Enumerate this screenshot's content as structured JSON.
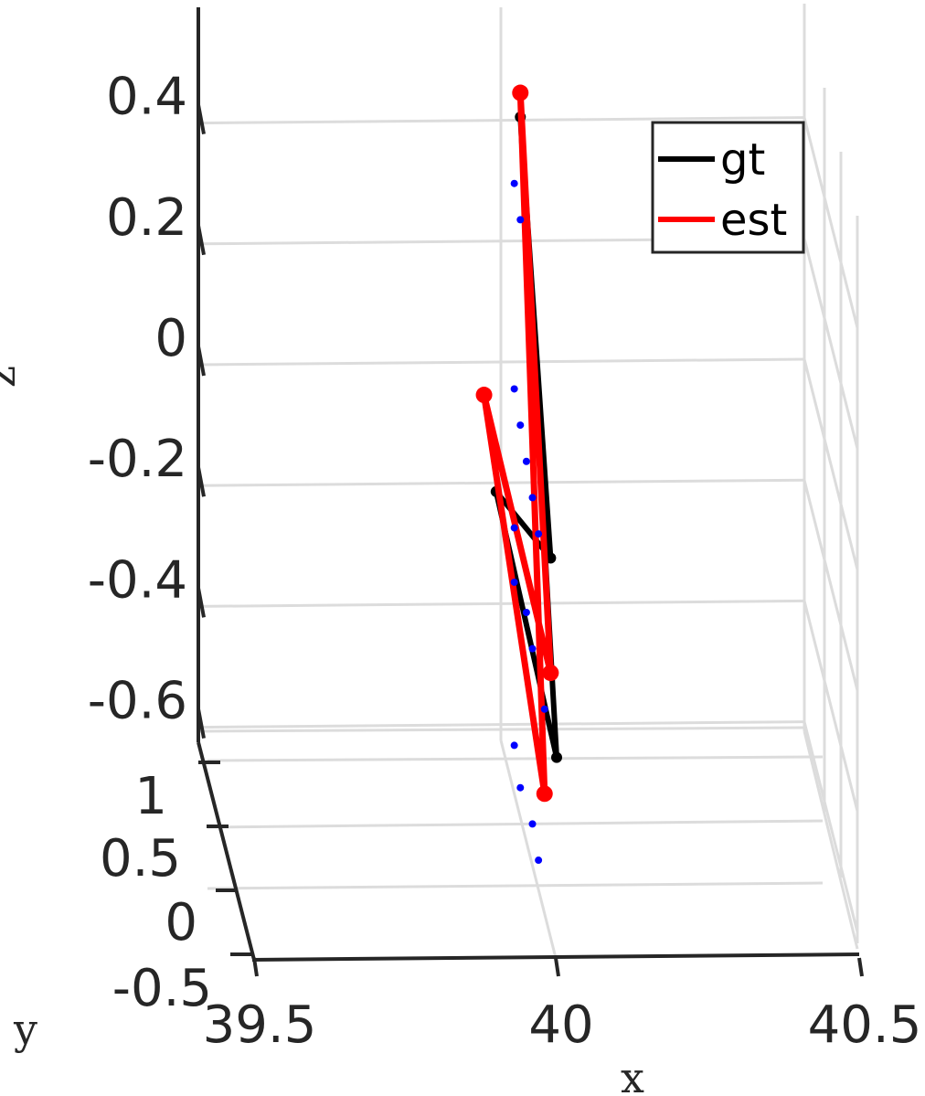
{
  "chart_data": {
    "type": "line",
    "projection": "3d",
    "xlabel": "x",
    "ylabel": "y",
    "zlabel": "z",
    "xlim": [
      39.5,
      40.5
    ],
    "ylim": [
      -0.5,
      1.25
    ],
    "zlim": [
      -0.7,
      0.5
    ],
    "xticks": [
      "39.5",
      "40",
      "40.5"
    ],
    "yticks": [
      "-0.5",
      "0",
      "0.5",
      "1"
    ],
    "zticks": [
      "0.4",
      "0.2",
      "0",
      "-0.2",
      "-0.4",
      "-0.6"
    ],
    "grid": true,
    "legend_position": "top-right",
    "legend": [
      "gt",
      "est"
    ],
    "series": [
      {
        "name": "gt",
        "color": "#000000",
        "x": [
          39.94,
          39.99,
          39.9,
          40.0,
          39.94
        ],
        "y": [
          0.0,
          0.0,
          0.0,
          0.0,
          0.0
        ],
        "z": [
          0.41,
          -0.32,
          -0.21,
          -0.65,
          0.41
        ]
      },
      {
        "name": "est",
        "color": "#ff0000",
        "x": [
          39.94,
          39.98,
          39.88,
          39.99,
          39.94
        ],
        "y": [
          0.0,
          0.0,
          0.0,
          0.0,
          0.0
        ],
        "z": [
          0.45,
          -0.71,
          -0.05,
          -0.51,
          0.45
        ]
      },
      {
        "name": "",
        "color": "#0000ff",
        "style": "dots",
        "x": [
          39.93,
          39.94,
          39.93,
          39.94,
          39.95,
          39.96,
          39.97,
          39.93,
          39.93,
          39.95,
          39.96,
          39.98,
          39.93,
          39.94,
          39.96,
          39.97
        ],
        "y": [
          0,
          0,
          0,
          0,
          0,
          0,
          0,
          0,
          0,
          0,
          0,
          0,
          0,
          0,
          0,
          0
        ],
        "z": [
          0.3,
          0.24,
          -0.04,
          -0.1,
          -0.16,
          -0.22,
          -0.28,
          -0.27,
          -0.36,
          -0.41,
          -0.47,
          -0.57,
          -0.63,
          -0.7,
          -0.76,
          -0.82
        ]
      }
    ]
  }
}
